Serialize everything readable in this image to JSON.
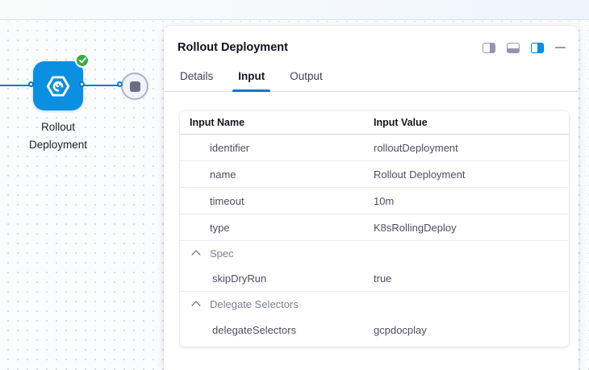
{
  "canvas": {
    "node": {
      "label": "Rollout Deployment",
      "status": "success",
      "icon": "k8s-rolling-deploy-icon",
      "color": "#0b90e1"
    },
    "end_node_icon": "stop-icon",
    "connector_color": "#0278d5",
    "success_color": "#3aab47"
  },
  "panel": {
    "title": "Rollout Deployment",
    "accent_color": "#0278d5",
    "header_icons": [
      {
        "name": "panel-layout-columns-icon",
        "style": "split"
      },
      {
        "name": "panel-layout-bottom-icon",
        "style": "bottom"
      },
      {
        "name": "panel-layout-right-icon",
        "style": "right-active"
      },
      {
        "name": "minimize-icon",
        "style": "minus"
      }
    ],
    "tabs": [
      {
        "label": "Details",
        "active": false
      },
      {
        "label": "Input",
        "active": true
      },
      {
        "label": "Output",
        "active": false
      }
    ],
    "table": {
      "columns": [
        "Input Name",
        "Input Value"
      ],
      "rows": [
        {
          "type": "item",
          "name": "identifier",
          "value": "rolloutDeployment"
        },
        {
          "type": "item",
          "name": "name",
          "value": "Rollout Deployment"
        },
        {
          "type": "item",
          "name": "timeout",
          "value": "10m"
        },
        {
          "type": "item",
          "name": "type",
          "value": "K8sRollingDeploy"
        },
        {
          "type": "group",
          "name": "Spec",
          "value": ""
        },
        {
          "type": "child",
          "name": "skipDryRun",
          "value": "true"
        },
        {
          "type": "group",
          "name": "Delegate Selectors",
          "value": ""
        },
        {
          "type": "child",
          "name": "delegateSelectors",
          "value": "gcpdocplay"
        }
      ]
    }
  }
}
